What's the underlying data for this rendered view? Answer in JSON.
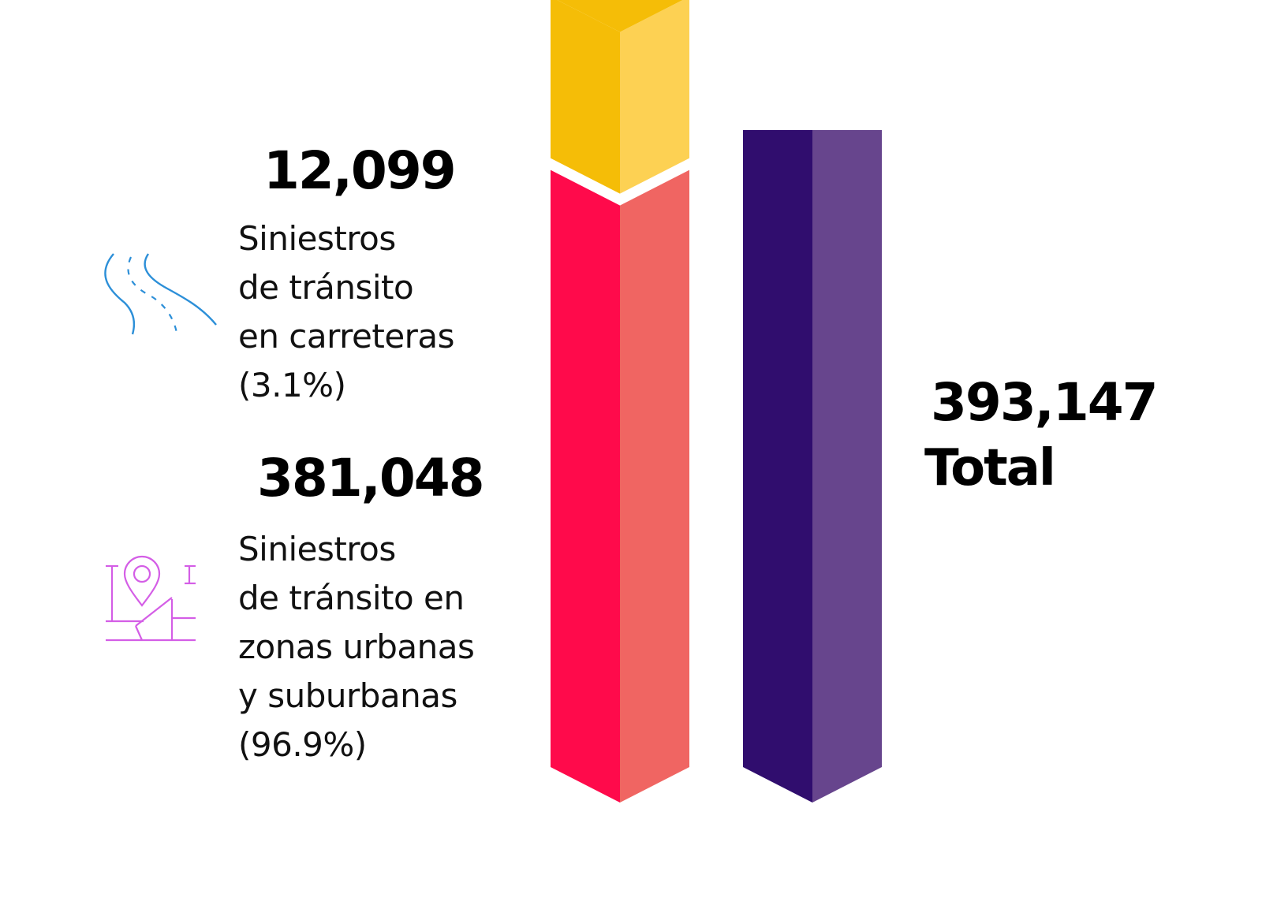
{
  "highway": {
    "value_label": "12,099",
    "lines": [
      "Siniestros",
      "de tránsito",
      "en carreteras",
      "(3.1%)"
    ]
  },
  "urban": {
    "value_label": "381,048",
    "lines": [
      "Siniestros",
      "de tránsito en",
      "zonas urbanas",
      "y suburbanas",
      "(96.9%)"
    ]
  },
  "total": {
    "value_label": "393,147",
    "label": "Total"
  },
  "icons": {
    "highway": "road-icon",
    "urban": "map-pin-icon"
  },
  "colors": {
    "highway_front": "#f5bd07",
    "highway_side": "#fdd153",
    "urban_front": "#ff0a4b",
    "urban_side": "#f06562",
    "total_front": "#300d6e",
    "total_side": "#67458d",
    "road_icon": "#2c8fd8",
    "pin_icon": "#d45ee6"
  },
  "chart_data": {
    "type": "bar",
    "stacked": true,
    "categories": [
      "",
      "Total"
    ],
    "series": [
      {
        "name": "Siniestros de tránsito en zonas urbanas y suburbanas",
        "values": [
          381048,
          0
        ]
      },
      {
        "name": "Siniestros de tránsito en carreteras",
        "values": [
          12099,
          0
        ]
      },
      {
        "name": "Total",
        "values": [
          0,
          393147
        ]
      }
    ],
    "percentages": {
      "carreteras": 3.1,
      "urbanas": 96.9
    }
  }
}
